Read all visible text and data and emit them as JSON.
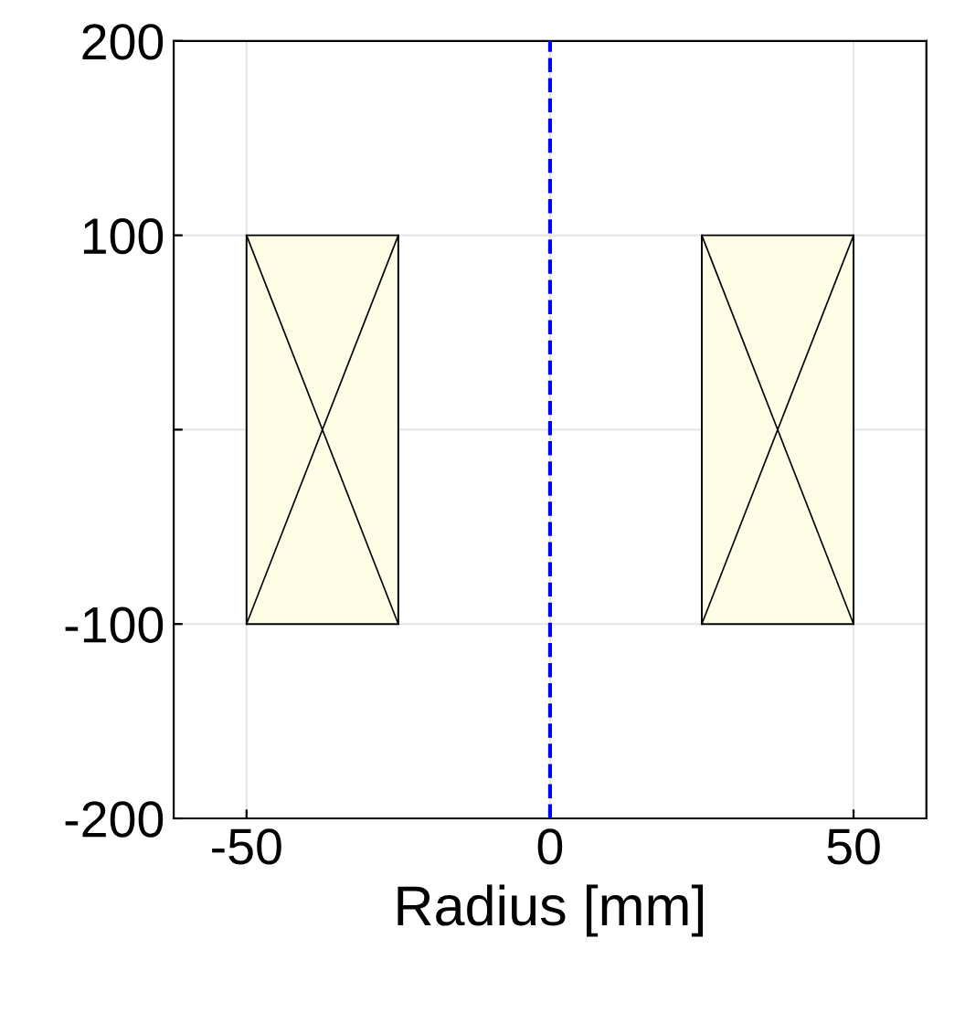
{
  "chart_data": {
    "type": "bar",
    "x": [
      -37.5,
      37.5
    ],
    "values": [
      200,
      200
    ],
    "base": [
      -100,
      -100
    ],
    "color": "#fffde6",
    "xlabel": "Radius [mm]",
    "xlim": [
      -62,
      62
    ],
    "ylim": [
      -200,
      200
    ],
    "xticks": [
      -50,
      0,
      50
    ],
    "yticks": [
      -200,
      -100,
      {
        "value": 0,
        "label": null
      },
      100,
      200
    ],
    "grid": true,
    "ref_lines": [
      {
        "axis": "x",
        "value": 0,
        "color": "#0000ff",
        "line_style": "dashed"
      }
    ]
  }
}
